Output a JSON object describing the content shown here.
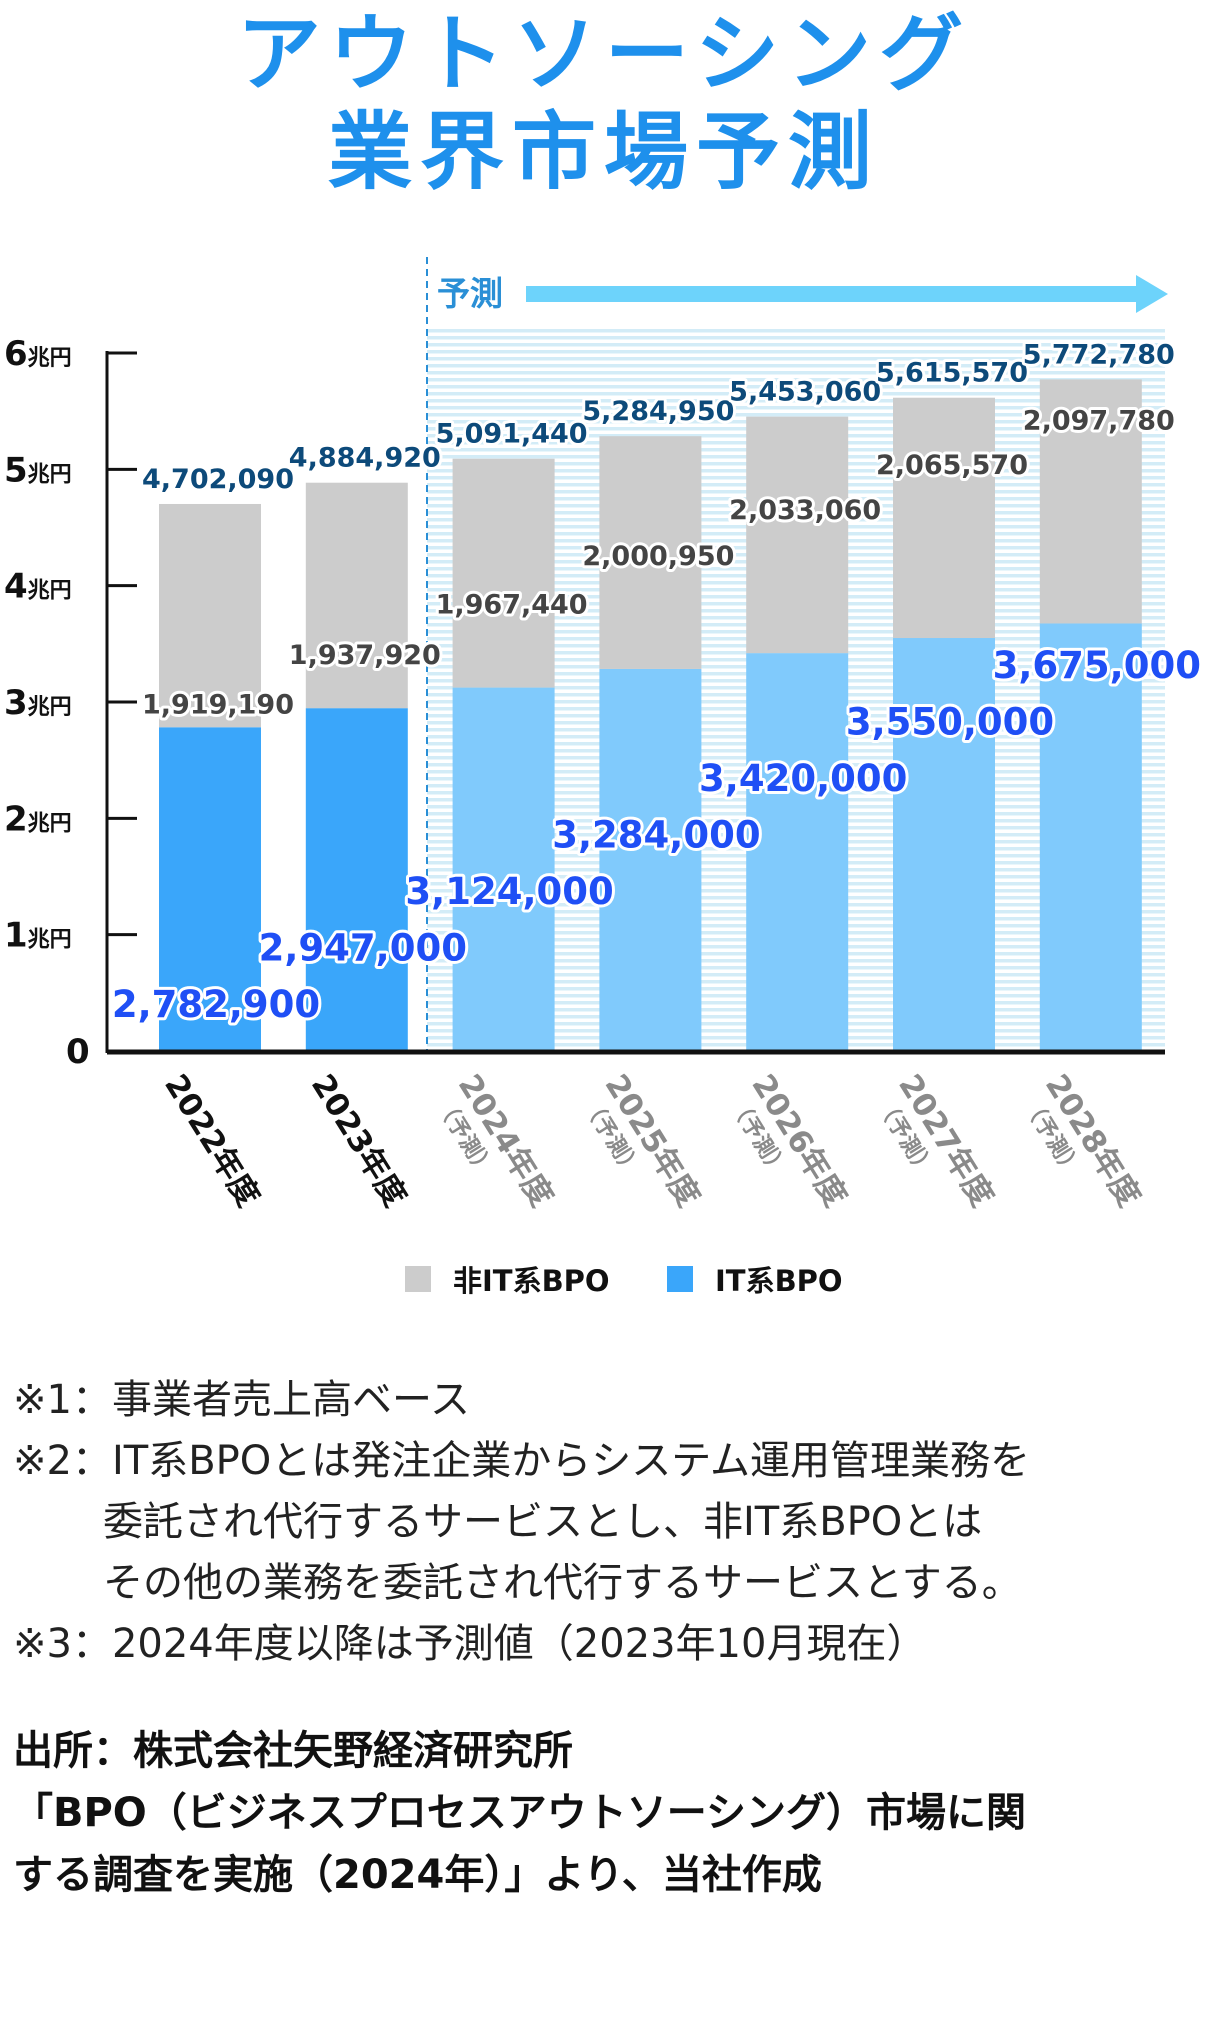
{
  "title": {
    "line1": "アウトソーシング",
    "line2": "業界市場予測"
  },
  "forecast_label": "予測",
  "colors": {
    "title": "#1e90ec",
    "non_it": "#cccccc",
    "it_actual": "#3aa6fa",
    "it_forecast": "#80cafc",
    "forecast_arrow": "#6dd3fb",
    "total_label": "#0d4a7a",
    "it_label": "#1f4ff5"
  },
  "chart_data": {
    "type": "bar",
    "stacked": true,
    "title": "アウトソーシング業界市場予測",
    "categories": [
      "2022年度",
      "2023年度",
      "2024年度",
      "2025年度",
      "2026年度",
      "2027年度",
      "2028年度"
    ],
    "category_notes": [
      "",
      "",
      "（予測）",
      "（予測）",
      "（予測）",
      "（予測）",
      "（予測）"
    ],
    "forecast_from_index": 2,
    "series": [
      {
        "name": "IT系BPO",
        "values": [
          2782900,
          2947000,
          3124000,
          3284000,
          3420000,
          3550000,
          3675000
        ],
        "labels": [
          "2,782,900",
          "2,947,000",
          "3,124,000",
          "3,284,000",
          "3,420,000",
          "3,550,000",
          "3,675,000"
        ]
      },
      {
        "name": "非IT系BPO",
        "values": [
          1919190,
          1937920,
          1967440,
          2000950,
          2033060,
          2065570,
          2097780
        ],
        "labels": [
          "1,919,190",
          "1,937,920",
          "1,967,440",
          "2,000,950",
          "2,033,060",
          "2,065,570",
          "2,097,780"
        ]
      }
    ],
    "totals": [
      4702090,
      4884920,
      5091440,
      5284950,
      5453060,
      5615570,
      5772780
    ],
    "total_labels": [
      "4,702,090",
      "4,884,920",
      "5,091,440",
      "5,284,950",
      "5,453,060",
      "5,615,570",
      "5,772,780"
    ],
    "yticks": [
      0,
      1000000,
      2000000,
      3000000,
      4000000,
      5000000,
      6000000
    ],
    "ytick_labels": [
      {
        "num": "0",
        "unit": ""
      },
      {
        "num": "1",
        "unit": "兆円"
      },
      {
        "num": "2",
        "unit": "兆円"
      },
      {
        "num": "3",
        "unit": "兆円"
      },
      {
        "num": "4",
        "unit": "兆円"
      },
      {
        "num": "5",
        "unit": "兆円"
      },
      {
        "num": "6",
        "unit": "兆円"
      }
    ],
    "ylim": [
      0,
      6000000
    ],
    "xlabel": "",
    "ylabel": "",
    "legend": {
      "placement": "bottom",
      "entries": [
        "非IT系BPO",
        "IT系BPO"
      ]
    }
  },
  "notes": [
    "※1：事業者売上高ベース",
    "※2：IT系BPOとは発注企業からシステム運用管理業務を",
    "委託され代行するサービスとし、非IT系BPOとは",
    "その他の業務を委託され代行するサービスとする。",
    "※3：2024年度以降は予測値（2023年10月現在）"
  ],
  "source": [
    "出所：株式会社矢野経済研究所",
    "「BPO（ビジネスプロセスアウトソーシング）市場に関",
    "する調査を実施（2024年）」より、当社作成"
  ]
}
